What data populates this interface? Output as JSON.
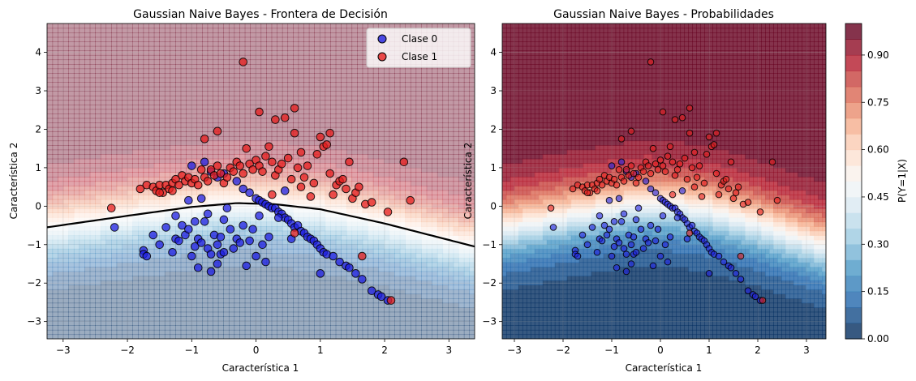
{
  "chart_data": [
    {
      "type": "scatter",
      "title": "Gaussian Naive Bayes - Frontera de Decisión",
      "xlabel": "Característica 1",
      "ylabel": "Característica 2",
      "xlim": [
        -3.25,
        3.4
      ],
      "ylim": [
        -3.45,
        4.75
      ],
      "xticks": [
        -3,
        -2,
        -1,
        0,
        1,
        2,
        3
      ],
      "yticks": [
        -3,
        -2,
        -1,
        0,
        1,
        2,
        3,
        4
      ],
      "grid": true,
      "legend_position": "top-right",
      "decision_boundary": {
        "type": "curve",
        "points": [
          [
            -3.25,
            -0.55
          ],
          [
            -2.0,
            -0.25
          ],
          [
            -1.0,
            -0.02
          ],
          [
            -0.3,
            0.08
          ],
          [
            0.3,
            0.05
          ],
          [
            1.0,
            -0.08
          ],
          [
            2.0,
            -0.45
          ],
          [
            3.4,
            -1.05
          ]
        ]
      },
      "series": [
        {
          "name": "Clase 0",
          "color": "#1f1fe0",
          "points": [
            [
              -2.2,
              -0.55
            ],
            [
              -1.75,
              -1.15
            ],
            [
              -1.75,
              -1.25
            ],
            [
              -1.7,
              -1.3
            ],
            [
              -1.6,
              -0.75
            ],
            [
              -1.5,
              -1.0
            ],
            [
              -1.4,
              -0.55
            ],
            [
              -1.3,
              -1.2
            ],
            [
              -1.25,
              -0.85
            ],
            [
              -1.2,
              -0.9
            ],
            [
              -1.15,
              -0.5
            ],
            [
              -1.1,
              -0.75
            ],
            [
              -1.05,
              -0.6
            ],
            [
              -1.0,
              -1.3
            ],
            [
              -0.95,
              -0.4
            ],
            [
              -0.95,
              -1.05
            ],
            [
              -0.9,
              -0.85
            ],
            [
              -0.9,
              -1.6
            ],
            [
              -0.85,
              -0.95
            ],
            [
              -0.8,
              -0.4
            ],
            [
              -0.75,
              -0.2
            ],
            [
              -0.75,
              -1.1
            ],
            [
              -0.7,
              -1.25
            ],
            [
              -0.7,
              -1.7
            ],
            [
              -0.65,
              -0.75
            ],
            [
              -0.6,
              -1.0
            ],
            [
              -0.6,
              -1.5
            ],
            [
              -0.55,
              -0.8
            ],
            [
              -0.55,
              -1.25
            ],
            [
              -0.5,
              -0.35
            ],
            [
              -0.5,
              -1.2
            ],
            [
              -0.45,
              -0.05
            ],
            [
              -0.4,
              -0.6
            ],
            [
              -0.35,
              -1.1
            ],
            [
              -0.3,
              -0.85
            ],
            [
              -0.25,
              -0.95
            ],
            [
              -0.2,
              -0.5
            ],
            [
              -0.15,
              -1.55
            ],
            [
              -0.1,
              -0.9
            ],
            [
              -0.05,
              -0.6
            ],
            [
              0.0,
              -1.3
            ],
            [
              0.05,
              -0.25
            ],
            [
              0.1,
              -1.0
            ],
            [
              0.15,
              -1.45
            ],
            [
              0.2,
              -0.8
            ],
            [
              -0.8,
              1.15
            ],
            [
              -0.7,
              0.9
            ],
            [
              -0.6,
              0.75
            ],
            [
              -0.5,
              0.85
            ],
            [
              -0.3,
              0.65
            ],
            [
              -1.0,
              1.05
            ],
            [
              -0.85,
              0.2
            ],
            [
              -1.05,
              0.15
            ],
            [
              -1.25,
              -0.25
            ],
            [
              -0.2,
              0.45
            ],
            [
              -0.1,
              0.35
            ],
            [
              0.0,
              0.2
            ],
            [
              0.05,
              0.15
            ],
            [
              0.1,
              0.1
            ],
            [
              0.15,
              0.05
            ],
            [
              0.2,
              0.0
            ],
            [
              0.25,
              -0.05
            ],
            [
              0.3,
              -0.05
            ],
            [
              0.35,
              -0.15
            ],
            [
              0.4,
              -0.2
            ],
            [
              0.45,
              -0.3
            ],
            [
              0.5,
              -0.35
            ],
            [
              0.55,
              -0.45
            ],
            [
              0.6,
              -0.55
            ],
            [
              0.65,
              -0.5
            ],
            [
              0.7,
              -0.65
            ],
            [
              0.75,
              -0.7
            ],
            [
              0.8,
              -0.8
            ],
            [
              0.85,
              -0.85
            ],
            [
              0.9,
              -0.9
            ],
            [
              0.95,
              -1.0
            ],
            [
              1.0,
              -1.1
            ],
            [
              1.05,
              -1.2
            ],
            [
              1.1,
              -1.25
            ],
            [
              1.2,
              -1.3
            ],
            [
              1.3,
              -1.45
            ],
            [
              1.4,
              -1.55
            ],
            [
              1.45,
              -1.6
            ],
            [
              1.55,
              -1.75
            ],
            [
              1.65,
              -1.9
            ],
            [
              1.8,
              -2.2
            ],
            [
              1.9,
              -2.3
            ],
            [
              1.95,
              -2.35
            ],
            [
              2.05,
              -2.45
            ],
            [
              1.0,
              -1.75
            ],
            [
              0.45,
              0.4
            ],
            [
              0.35,
              -0.3
            ],
            [
              0.55,
              -0.85
            ]
          ]
        },
        {
          "name": "Clase 1",
          "color": "#e61e1e",
          "points": [
            [
              -2.25,
              -0.05
            ],
            [
              -1.8,
              0.45
            ],
            [
              -1.7,
              0.55
            ],
            [
              -1.6,
              0.5
            ],
            [
              -1.55,
              0.4
            ],
            [
              -1.5,
              0.55
            ],
            [
              -1.45,
              0.35
            ],
            [
              -1.4,
              0.55
            ],
            [
              -1.35,
              0.45
            ],
            [
              -1.3,
              0.6
            ],
            [
              -1.25,
              0.7
            ],
            [
              -1.2,
              0.55
            ],
            [
              -1.15,
              0.8
            ],
            [
              -1.1,
              0.65
            ],
            [
              -1.05,
              0.75
            ],
            [
              -1.0,
              0.6
            ],
            [
              -0.95,
              0.7
            ],
            [
              -0.9,
              0.55
            ],
            [
              -0.85,
              0.95
            ],
            [
              -0.8,
              0.75
            ],
            [
              -0.75,
              0.65
            ],
            [
              -0.7,
              0.95
            ],
            [
              -0.65,
              0.8
            ],
            [
              -0.6,
              1.05
            ],
            [
              -0.55,
              0.85
            ],
            [
              -0.5,
              0.6
            ],
            [
              -0.45,
              0.75
            ],
            [
              -0.4,
              1.0
            ],
            [
              -0.35,
              0.9
            ],
            [
              -0.3,
              1.15
            ],
            [
              -0.25,
              1.05
            ],
            [
              -0.2,
              0.85
            ],
            [
              -0.15,
              1.5
            ],
            [
              -0.1,
              1.1
            ],
            [
              -0.05,
              0.95
            ],
            [
              0.0,
              1.2
            ],
            [
              0.05,
              1.05
            ],
            [
              0.1,
              0.9
            ],
            [
              0.15,
              1.3
            ],
            [
              0.2,
              1.55
            ],
            [
              0.25,
              1.15
            ],
            [
              0.3,
              0.8
            ],
            [
              0.35,
              0.95
            ],
            [
              0.4,
              1.1
            ],
            [
              0.45,
              2.3
            ],
            [
              0.5,
              1.25
            ],
            [
              0.55,
              0.7
            ],
            [
              0.6,
              1.9
            ],
            [
              0.65,
              1.0
            ],
            [
              0.7,
              0.5
            ],
            [
              0.75,
              0.75
            ],
            [
              0.8,
              1.05
            ],
            [
              0.85,
              0.25
            ],
            [
              0.9,
              0.6
            ],
            [
              0.95,
              1.35
            ],
            [
              1.0,
              1.8
            ],
            [
              1.05,
              1.55
            ],
            [
              1.1,
              1.6
            ],
            [
              1.15,
              0.85
            ],
            [
              1.2,
              0.3
            ],
            [
              1.25,
              0.55
            ],
            [
              1.3,
              0.65
            ],
            [
              1.35,
              0.7
            ],
            [
              1.4,
              0.45
            ],
            [
              1.45,
              1.15
            ],
            [
              1.5,
              0.2
            ],
            [
              1.55,
              0.35
            ],
            [
              1.6,
              0.5
            ],
            [
              1.7,
              0.05
            ],
            [
              1.8,
              0.1
            ],
            [
              2.05,
              -0.15
            ],
            [
              2.3,
              1.15
            ],
            [
              2.4,
              0.15
            ],
            [
              -0.2,
              3.75
            ],
            [
              0.05,
              2.45
            ],
            [
              0.6,
              2.55
            ],
            [
              -0.6,
              1.95
            ],
            [
              -0.8,
              1.75
            ],
            [
              0.3,
              2.25
            ],
            [
              0.7,
              1.4
            ],
            [
              1.15,
              1.9
            ],
            [
              -1.5,
              0.35
            ],
            [
              -1.3,
              0.4
            ],
            [
              0.25,
              0.3
            ],
            [
              0.6,
              -0.7
            ],
            [
              1.65,
              -1.3
            ],
            [
              2.1,
              -2.45
            ]
          ]
        }
      ]
    },
    {
      "type": "heatmap",
      "title": "Gaussian Naive Bayes - Probabilidades",
      "xlabel": "Característica 1",
      "ylabel": "Característica 2",
      "xlim": [
        -3.25,
        3.4
      ],
      "ylim": [
        -3.45,
        4.75
      ],
      "xticks": [
        -3,
        -2,
        -1,
        0,
        1,
        2,
        3
      ],
      "yticks": [
        -3,
        -2,
        -1,
        0,
        1,
        2,
        3,
        4
      ],
      "grid": true,
      "colormap": "RdBu_r",
      "colorbar": {
        "label": "P(Y=1|X)",
        "ticks": [
          "0.00",
          "0.15",
          "0.30",
          "0.45",
          "0.60",
          "0.75",
          "0.90"
        ],
        "levels": 20
      }
    }
  ],
  "colors": {
    "class0": "#1f1fe0",
    "class1": "#e61e1e",
    "boundary": "#000000"
  }
}
